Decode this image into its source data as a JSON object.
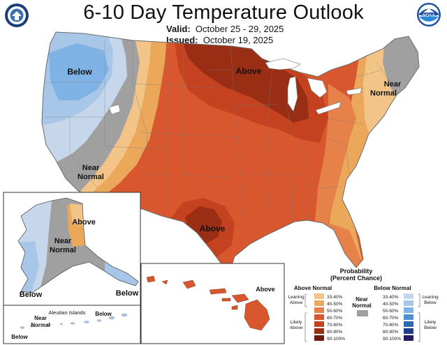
{
  "title": "6-10 Day Temperature Outlook",
  "valid_label": "Valid:",
  "valid_dates": "October 25 - 29, 2025",
  "issued_label": "Issued:",
  "issued_date": "October 19, 2025",
  "logos": {
    "left": "doc-seal-icon",
    "right": "noaa-logo-icon",
    "noaa_text": "NOAA"
  },
  "conus_labels": {
    "below_northwest": "Below",
    "above_north": "Above",
    "near_normal_northeast": [
      "Near",
      "Normal"
    ],
    "near_normal_west": [
      "Near",
      "Normal"
    ],
    "above_south": "Above"
  },
  "alaska_labels": {
    "above": "Above",
    "near_normal": [
      "Near",
      "Normal"
    ],
    "below_southwest": "Below",
    "below_southeast": "Below"
  },
  "aleutian_labels": {
    "title": "Aleutian Islands",
    "near_normal": [
      "Near",
      "Normal"
    ],
    "below_left": "Below",
    "below_right": "Below"
  },
  "hawaii_labels": {
    "above": "Above"
  },
  "legend": {
    "title": [
      "Probability",
      "(Percent Chance)"
    ],
    "above_header": "Above Normal",
    "below_header": "Below Normal",
    "near_header": [
      "Near",
      "Normal"
    ],
    "leaning_above": [
      "Leaning",
      "Above"
    ],
    "likely_above": [
      "Likely",
      "Above"
    ],
    "leaning_below": [
      "Leaning",
      "Below"
    ],
    "likely_below": [
      "Likely",
      "Below"
    ],
    "ranges": [
      "33-40%",
      "40-50%",
      "50-60%",
      "60-70%",
      "70-80%",
      "80-90%",
      "90-100%"
    ],
    "above_colors": [
      "#f2c488",
      "#eba75a",
      "#e6814a",
      "#d9572f",
      "#c4421f",
      "#9a2e14",
      "#6e1a08"
    ],
    "below_colors": [
      "#c6d7ec",
      "#a8c6e8",
      "#7fb2e5",
      "#4f90d0",
      "#2c6ab0",
      "#1f3e8a",
      "#271860"
    ],
    "near_color": "#a0a0a0"
  }
}
